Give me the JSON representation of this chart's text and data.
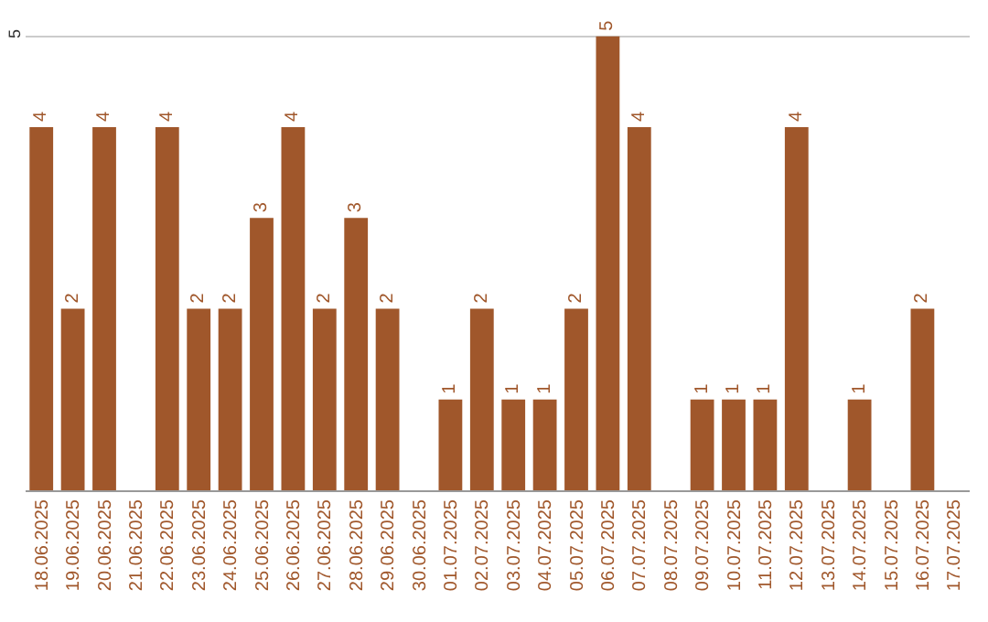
{
  "chart_data": {
    "type": "bar",
    "categories": [
      "18.06.2025",
      "19.06.2025",
      "20.06.2025",
      "21.06.2025",
      "22.06.2025",
      "23.06.2025",
      "24.06.2025",
      "25.06.2025",
      "26.06.2025",
      "27.06.2025",
      "28.06.2025",
      "29.06.2025",
      "30.06.2025",
      "01.07.2025",
      "02.07.2025",
      "03.07.2025",
      "04.07.2025",
      "05.07.2025",
      "06.07.2025",
      "07.07.2025",
      "08.07.2025",
      "09.07.2025",
      "10.07.2025",
      "11.07.2025",
      "12.07.2025",
      "13.07.2025",
      "14.07.2025",
      "15.07.2025",
      "16.07.2025",
      "17.07.2025"
    ],
    "values": [
      4,
      2,
      4,
      0,
      4,
      2,
      2,
      3,
      4,
      2,
      3,
      2,
      0,
      1,
      2,
      1,
      1,
      2,
      5,
      4,
      0,
      1,
      1,
      1,
      4,
      0,
      1,
      0,
      2,
      0
    ],
    "value_labels": [
      "4",
      "2",
      "4",
      null,
      "4",
      "2",
      "2",
      "3",
      "4",
      "2",
      "3",
      "2",
      null,
      "1",
      "2",
      "1",
      "1",
      "2",
      "5",
      "4",
      null,
      "1",
      "1",
      "1",
      "4",
      null,
      "1",
      null,
      "2",
      null
    ],
    "color": "#a0572b",
    "ylim": [
      0,
      5.4
    ],
    "yticks": [
      5
    ],
    "grid": "y"
  }
}
